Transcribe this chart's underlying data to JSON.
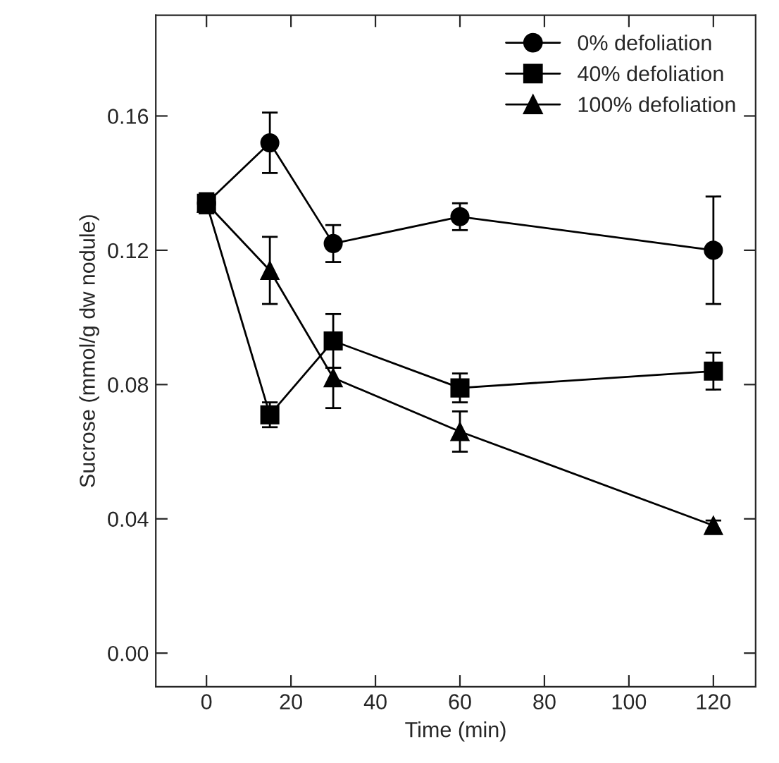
{
  "chart_data": {
    "type": "line",
    "xlabel": "Time (min)",
    "ylabel": "Sucrose (mmol/g dw nodule)",
    "x": [
      0,
      15,
      30,
      60,
      120
    ],
    "series": [
      {
        "name": "0% defoliation",
        "color": "#000000",
        "marker": "circle",
        "values": [
          0.134,
          0.152,
          0.122,
          0.13,
          0.12
        ],
        "errors": [
          0.003,
          0.009,
          0.0055,
          0.004,
          0.016
        ]
      },
      {
        "name": "40% defoliation",
        "color": "#000000",
        "marker": "square",
        "values": [
          0.134,
          0.071,
          0.093,
          0.079,
          0.084
        ],
        "errors": [
          null,
          0.0037,
          0.008,
          0.0043,
          0.0055
        ]
      },
      {
        "name": "100% defoliation",
        "color": "#000000",
        "marker": "triangle",
        "values": [
          0.134,
          0.114,
          0.082,
          0.066,
          0.038
        ],
        "errors": [
          null,
          0.01,
          [
            0.073,
            0.085
          ],
          0.006,
          0.0015
        ]
      }
    ],
    "xlim": [
      -12,
      130
    ],
    "xticks": [
      0,
      20,
      40,
      60,
      80,
      100,
      120
    ],
    "ylim": [
      -0.01,
      0.19
    ],
    "yticks": [
      {
        "value": 0,
        "label": "0.00"
      },
      {
        "value": 0.04,
        "label": "0.04"
      },
      {
        "value": 0.08,
        "label": "0.08"
      },
      {
        "value": 0.12,
        "label": "0.12"
      },
      {
        "value": 0.16,
        "label": "0.16"
      }
    ],
    "legend": "top right",
    "grid": false,
    "line_style": "solid"
  }
}
